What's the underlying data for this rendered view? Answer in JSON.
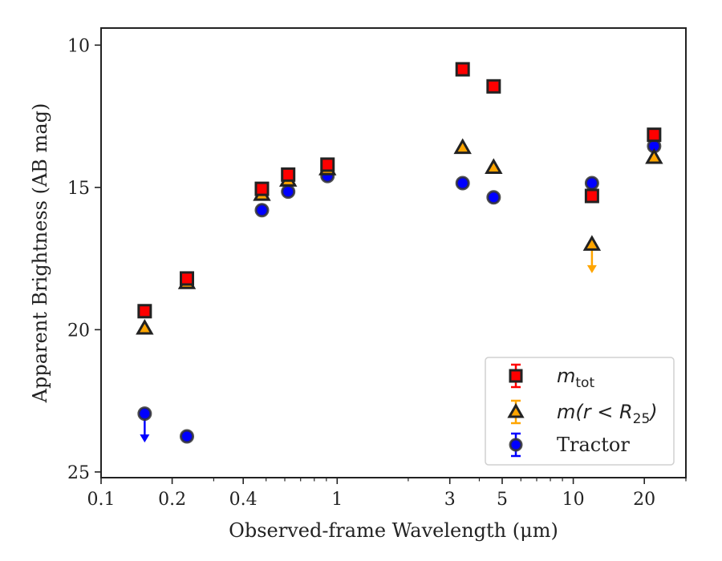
{
  "chart_data": {
    "type": "scatter",
    "xlabel": "Observed-frame Wavelength (μm)",
    "ylabel": "Apparent Brightness (AB mag)",
    "x_scale": "log",
    "xlim": [
      0.1,
      30
    ],
    "ylim": [
      25.2,
      9.4
    ],
    "y_inverted": true,
    "x_ticks": [
      0.1,
      0.2,
      0.4,
      1,
      3,
      5,
      10,
      20
    ],
    "x_tick_labels": [
      "0.1",
      "0.2",
      "0.4",
      "1",
      "3",
      "5",
      "10",
      "20"
    ],
    "y_ticks": [
      10,
      15,
      20,
      25
    ],
    "y_tick_labels": [
      "10",
      "15",
      "20",
      "25"
    ],
    "grid": false,
    "legend_position": "bottom-right",
    "series": [
      {
        "name": "m_tot",
        "legend_main": "m",
        "legend_sub": "tot",
        "marker": "square",
        "color": "#ff0000",
        "edge_color": "#222222",
        "points": [
          {
            "x": 0.153,
            "y": 19.35
          },
          {
            "x": 0.231,
            "y": 18.2
          },
          {
            "x": 0.48,
            "y": 15.05
          },
          {
            "x": 0.62,
            "y": 14.55
          },
          {
            "x": 0.91,
            "y": 14.2
          },
          {
            "x": 3.4,
            "y": 10.85
          },
          {
            "x": 4.6,
            "y": 11.45
          },
          {
            "x": 12.0,
            "y": 15.3
          },
          {
            "x": 22.0,
            "y": 13.15
          }
        ]
      },
      {
        "name": "m(r < R25)",
        "legend_main": "m(r < R",
        "legend_sub": "25",
        "legend_close": ")",
        "marker": "triangle",
        "color": "#ffa500",
        "edge_color": "#222222",
        "points": [
          {
            "x": 0.153,
            "y": 19.95
          },
          {
            "x": 0.231,
            "y": 18.35
          },
          {
            "x": 0.48,
            "y": 15.25
          },
          {
            "x": 0.62,
            "y": 14.75
          },
          {
            "x": 0.91,
            "y": 14.35
          },
          {
            "x": 3.4,
            "y": 13.6
          },
          {
            "x": 4.6,
            "y": 14.3
          },
          {
            "x": 12.0,
            "y": 17.0,
            "upper_limit": true
          },
          {
            "x": 22.0,
            "y": 13.95
          }
        ]
      },
      {
        "name": "Tractor",
        "legend_main": "Tractor",
        "marker": "circle",
        "color": "#0000ff",
        "edge_color": "#333333",
        "points": [
          {
            "x": 0.153,
            "y": 22.95,
            "upper_limit": true
          },
          {
            "x": 0.231,
            "y": 23.75
          },
          {
            "x": 0.48,
            "y": 15.8
          },
          {
            "x": 0.62,
            "y": 15.15
          },
          {
            "x": 0.91,
            "y": 14.6
          },
          {
            "x": 3.4,
            "y": 14.85
          },
          {
            "x": 4.6,
            "y": 15.35
          },
          {
            "x": 12.0,
            "y": 14.85
          },
          {
            "x": 22.0,
            "y": 13.55
          }
        ]
      }
    ]
  }
}
